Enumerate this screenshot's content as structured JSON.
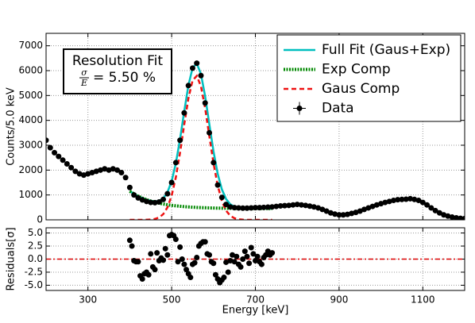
{
  "chart_data": [
    {
      "type": "line",
      "ylabel": "Counts/5.0 keV",
      "xlim": [
        200,
        1200
      ],
      "xticks": [
        300,
        500,
        700,
        900,
        1100
      ],
      "ylim": [
        0,
        7500
      ],
      "yticks": [
        0,
        1000,
        2000,
        3000,
        4000,
        5000,
        6000,
        7000
      ],
      "grid": true,
      "legend": "upper right",
      "annotation": {
        "title": "Resolution Fit",
        "numerator": "σ",
        "denominator": "E",
        "text": "= 5.50 %"
      },
      "series": [
        {
          "name": "Full Fit (Gaus+Exp)",
          "color": "#00bfbf",
          "linestyle": "solid",
          "x": [
            400,
            410,
            420,
            430,
            440,
            450,
            460,
            470,
            480,
            490,
            500,
            510,
            520,
            530,
            540,
            550,
            560,
            570,
            580,
            590,
            600,
            610,
            620,
            630,
            640,
            650,
            660,
            670,
            680,
            690,
            700,
            710,
            720,
            730,
            740
          ],
          "values": [
            1150,
            1042,
            952,
            876,
            813,
            767,
            744,
            763,
            865,
            1106,
            1556,
            2271,
            3241,
            4357,
            5402,
            6113,
            6286,
            5864,
            4970,
            3848,
            2749,
            1854,
            1223,
            836,
            627,
            526,
            482,
            465,
            456,
            456,
            455,
            454,
            454,
            453,
            452
          ]
        },
        {
          "name": "Exp Comp",
          "color": "#008800",
          "linestyle": "dotted",
          "x": [
            400,
            410,
            420,
            430,
            440,
            450,
            460,
            470,
            480,
            490,
            500,
            510,
            520,
            530,
            540,
            550,
            560,
            570,
            580,
            590,
            600,
            610,
            620,
            630,
            640,
            650,
            660,
            670,
            680,
            690,
            700,
            710,
            720,
            730,
            740
          ],
          "values": [
            1150,
            1042,
            952,
            875,
            809,
            755,
            708,
            668,
            635,
            606,
            582,
            562,
            545,
            531,
            518,
            507,
            498,
            491,
            485,
            479,
            475,
            471,
            468,
            465,
            463,
            461,
            459,
            458,
            456,
            456,
            455,
            454,
            454,
            453,
            452
          ]
        },
        {
          "name": "Gaus Comp",
          "color": "#ee1111",
          "linestyle": "dashed",
          "x": [
            400,
            410,
            420,
            430,
            440,
            450,
            460,
            470,
            480,
            490,
            500,
            510,
            520,
            530,
            540,
            550,
            560,
            570,
            580,
            590,
            600,
            610,
            620,
            630,
            640,
            650,
            660,
            670,
            680,
            690,
            700,
            710,
            720,
            730,
            740
          ],
          "values": [
            0,
            0,
            0,
            1,
            4,
            12,
            36,
            95,
            230,
            500,
            974,
            1709,
            2696,
            3826,
            4884,
            5606,
            5788,
            5373,
            4485,
            3369,
            2274,
            1383,
            755,
            371,
            164,
            65,
            23,
            7,
            0,
            0,
            0,
            0,
            0,
            0,
            0
          ]
        },
        {
          "name": "Data",
          "color": "#000000",
          "linestyle": "none",
          "marker": "o",
          "x": [
            200,
            210,
            220,
            230,
            240,
            250,
            260,
            270,
            280,
            290,
            300,
            310,
            320,
            330,
            340,
            350,
            360,
            370,
            380,
            390,
            400,
            410,
            420,
            430,
            440,
            450,
            460,
            470,
            480,
            490,
            500,
            510,
            520,
            530,
            540,
            550,
            560,
            570,
            580,
            590,
            600,
            610,
            620,
            630,
            640,
            650,
            660,
            670,
            680,
            690,
            700,
            710,
            720,
            730,
            740,
            750,
            760,
            770,
            780,
            790,
            800,
            810,
            820,
            830,
            840,
            850,
            860,
            870,
            880,
            890,
            900,
            910,
            920,
            930,
            940,
            950,
            960,
            970,
            980,
            990,
            1000,
            1010,
            1020,
            1030,
            1040,
            1050,
            1060,
            1070,
            1080,
            1090,
            1100,
            1110,
            1120,
            1130,
            1140,
            1150,
            1160,
            1170,
            1180,
            1190,
            1200
          ],
          "values": [
            3200,
            2900,
            2700,
            2550,
            2400,
            2250,
            2100,
            1950,
            1850,
            1800,
            1850,
            1900,
            1950,
            2000,
            2050,
            2000,
            2050,
            2000,
            1900,
            1700,
            1300,
            1000,
            880,
            800,
            740,
            700,
            690,
            720,
            820,
            1050,
            1500,
            2300,
            3200,
            4300,
            5400,
            6100,
            6300,
            5800,
            4700,
            3500,
            2300,
            1400,
            900,
            620,
            520,
            490,
            480,
            470,
            470,
            480,
            490,
            490,
            500,
            510,
            520,
            540,
            560,
            570,
            580,
            600,
            620,
            600,
            580,
            550,
            520,
            480,
            420,
            350,
            280,
            230,
            200,
            200,
            220,
            260,
            300,
            350,
            420,
            480,
            540,
            600,
            650,
            700,
            740,
            780,
            810,
            820,
            830,
            850,
            820,
            780,
            700,
            600,
            480,
            370,
            280,
            200,
            150,
            110,
            80,
            60,
            50
          ]
        }
      ]
    },
    {
      "type": "scatter",
      "xlabel": "Energy [keV]",
      "ylabel": "Residuals[σ]",
      "xlim": [
        200,
        1200
      ],
      "xticks": [
        300,
        500,
        700,
        900,
        1100
      ],
      "ylim": [
        -6,
        6
      ],
      "yticks": [
        {
          "value": 5,
          "label": "5.0"
        },
        2.5,
        {
          "value": 0,
          "label": "0.0"
        },
        -2.5,
        {
          "value": -5,
          "label": "-5.0"
        }
      ],
      "grid": true,
      "color": "#000000",
      "hline": {
        "value": 0,
        "color": "#dd0000"
      },
      "x": [
        400,
        405,
        410,
        415,
        420,
        425,
        430,
        435,
        440,
        445,
        450,
        455,
        460,
        465,
        470,
        475,
        480,
        485,
        490,
        495,
        500,
        505,
        510,
        515,
        520,
        525,
        530,
        535,
        540,
        545,
        550,
        555,
        560,
        565,
        570,
        575,
        580,
        585,
        590,
        595,
        600,
        605,
        610,
        615,
        620,
        625,
        630,
        635,
        640,
        645,
        650,
        655,
        660,
        665,
        670,
        675,
        680,
        685,
        690,
        695,
        700,
        705,
        710,
        715,
        720,
        725,
        730,
        735,
        740
      ],
      "values": [
        3.6,
        2.5,
        -0.3,
        -0.5,
        -0.5,
        -3.2,
        -3.8,
        -2.8,
        -2.5,
        -3.0,
        1.0,
        -1.5,
        -2.0,
        1.2,
        -0.3,
        0.2,
        -0.2,
        2.0,
        0.8,
        4.5,
        4.7,
        4.5,
        3.8,
        -0.5,
        2.3,
        0.0,
        -1.0,
        -2.0,
        -2.8,
        -3.5,
        -1.0,
        -0.7,
        0.3,
        2.5,
        3.0,
        3.3,
        3.3,
        1.0,
        0.8,
        -0.5,
        -0.8,
        -3.0,
        -3.8,
        -4.5,
        -4.0,
        -3.5,
        -0.6,
        -2.5,
        -0.3,
        0.8,
        -0.5,
        0.5,
        -1.0,
        -1.5,
        0.0,
        1.5,
        0.5,
        -0.8,
        2.2,
        1.0,
        -0.3,
        0.5,
        -0.5,
        -1.0,
        0.3,
        0.8,
        1.5,
        0.8,
        1.2
      ]
    }
  ]
}
